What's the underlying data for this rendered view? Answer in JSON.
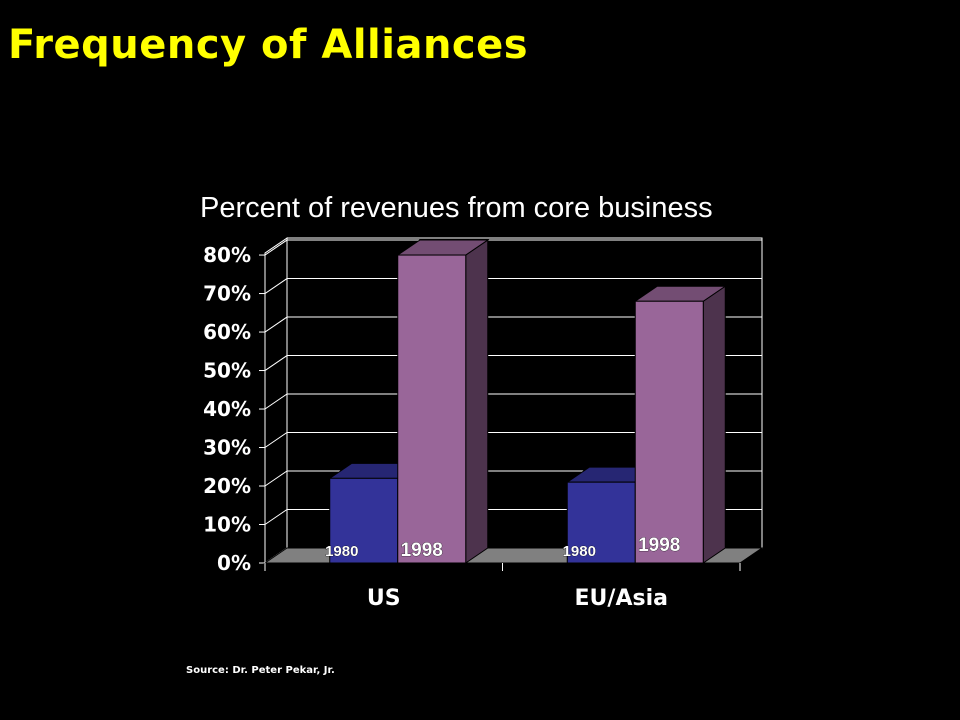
{
  "slide": {
    "title": "Frequency of Alliances",
    "source": "Source: Dr. Peter Pekar, Jr."
  },
  "colors": {
    "background": "#000000",
    "title": "#FFFF00",
    "text": "#FFFFFF",
    "series_1980": "#333399",
    "series_1998": "#996699",
    "floor": "#808080"
  },
  "chart_data": {
    "type": "bar",
    "title": "Percent of revenues from core business",
    "categories": [
      "US",
      "EU/Asia"
    ],
    "series": [
      {
        "name": "1980",
        "values": [
          22,
          21
        ]
      },
      {
        "name": "1998",
        "values": [
          80,
          68
        ]
      }
    ],
    "value_format": "percent",
    "ylim": [
      0,
      80
    ],
    "yticks": [
      0,
      10,
      20,
      30,
      40,
      50,
      60,
      70,
      80
    ],
    "ytick_labels": [
      "0%",
      "10%",
      "20%",
      "30%",
      "40%",
      "50%",
      "60%",
      "70%",
      "80%"
    ],
    "grid": true,
    "legend": "none",
    "style": "3d-clustered"
  }
}
